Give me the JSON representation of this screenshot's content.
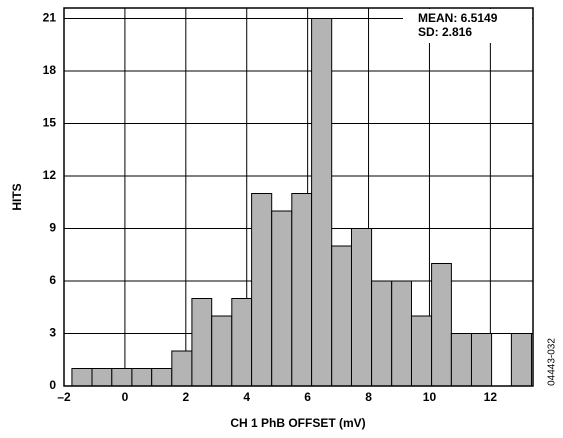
{
  "chart_data": {
    "type": "histogram",
    "xlabel": "CH 1 PhB OFFSET (mV)",
    "ylabel": "HITS",
    "annotations": [
      "MEAN: 6.5149",
      "SD: 2.816"
    ],
    "figure_id": "04443-032",
    "bins": [
      -1.74,
      -1.08,
      -0.43,
      0.23,
      0.88,
      1.54,
      2.2,
      2.85,
      3.51,
      4.16,
      4.82,
      5.48,
      6.13,
      6.79,
      7.44,
      8.1,
      8.76,
      9.41,
      10.07,
      10.72,
      11.38,
      12.04,
      12.69,
      13.35
    ],
    "values": [
      1,
      1,
      1,
      1,
      1,
      2,
      5,
      4,
      5,
      11,
      10,
      11,
      21,
      8,
      9,
      6,
      6,
      4,
      7,
      3,
      3,
      0,
      3
    ],
    "color": "#b4b4b4",
    "xlim": [
      -2,
      13.4
    ],
    "xticks": [
      {
        "value": -2,
        "label": "–2"
      },
      0,
      2,
      4,
      6,
      8,
      10,
      12
    ],
    "ylim": [
      0,
      21.6
    ],
    "yticks": [
      0,
      3,
      6,
      9,
      12,
      15,
      18,
      21
    ],
    "grid": true
  }
}
